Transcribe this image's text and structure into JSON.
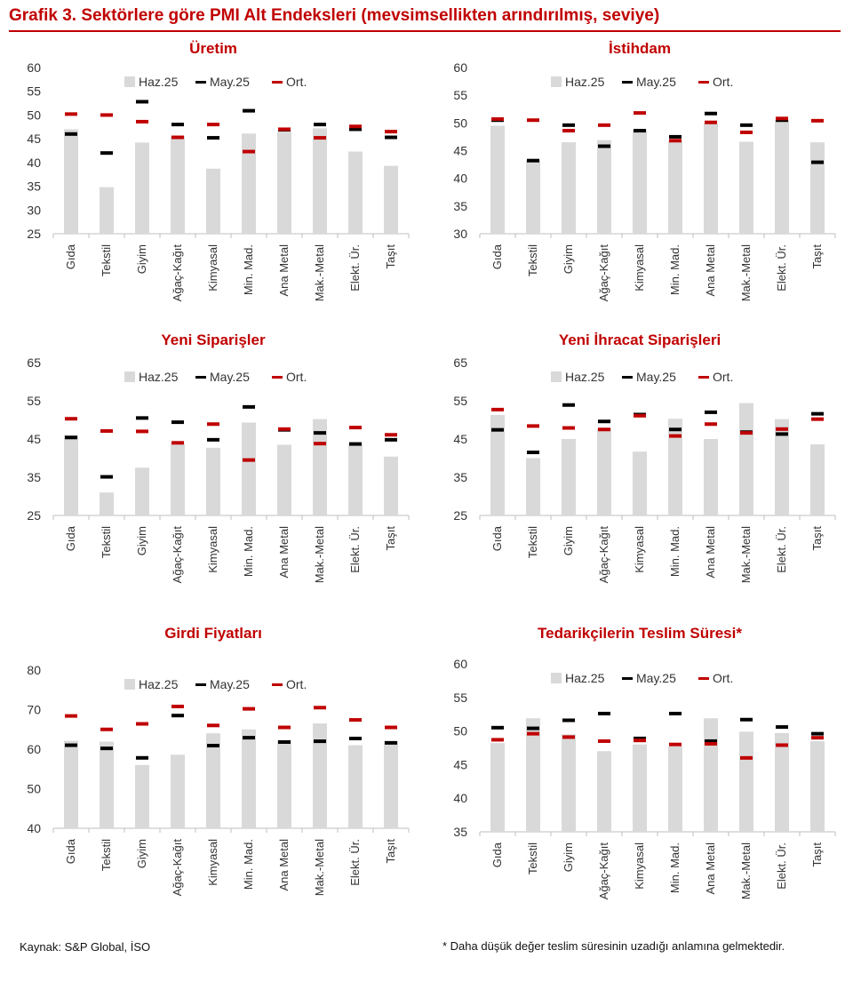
{
  "header": {
    "title": "Grafik 3. Sektörlere göre PMI Alt Endeksleri (mevsimsellikten arındırılmış, seviye)"
  },
  "footer": {
    "source": "Kaynak: S&P Global, İSO",
    "note": "* Daha düşük değer teslim süresinin uzadığı anlamına gelmektedir."
  },
  "legend": {
    "haz": "Haz.25",
    "may": "May.25",
    "ort": "Ort."
  },
  "colors": {
    "haz": "#d9d9d9",
    "may": "#000000",
    "ort": "#c00000",
    "title": "#c00000"
  },
  "categories": [
    "Gıda",
    "Tekstil",
    "Giyim",
    "Ağaç-Kağıt",
    "Kimyasal",
    "Min. Mad.",
    "Ana Metal",
    "Mak.-Metal",
    "Elekt. Ür.",
    "Taşıt"
  ],
  "chart_data": [
    {
      "type": "bar",
      "title": "Üretim",
      "ylim": [
        25,
        60
      ],
      "yticks": [
        25,
        30,
        35,
        40,
        45,
        50,
        55,
        60
      ],
      "series": [
        {
          "name": "Haz.25",
          "values": [
            47.0,
            34.8,
            44.2,
            45.5,
            38.7,
            46.1,
            46.6,
            47.2,
            42.3,
            39.3
          ]
        },
        {
          "name": "May.25",
          "values": [
            46.0,
            42.0,
            52.8,
            48.0,
            45.2,
            50.9,
            46.9,
            48.0,
            47.0,
            45.3
          ]
        },
        {
          "name": "Ort.",
          "values": [
            50.2,
            50.0,
            48.6,
            45.3,
            48.0,
            42.3,
            47.0,
            45.2,
            47.6,
            46.5
          ]
        }
      ],
      "legend_position": "top"
    },
    {
      "type": "bar",
      "title": "İstihdam",
      "ylim": [
        30,
        60
      ],
      "yticks": [
        30,
        35,
        40,
        45,
        50,
        55,
        60
      ],
      "series": [
        {
          "name": "Haz.25",
          "values": [
            49.5,
            43.3,
            46.5,
            46.9,
            48.8,
            46.8,
            49.9,
            46.6,
            50.5,
            46.5
          ]
        },
        {
          "name": "May.25",
          "values": [
            50.5,
            43.2,
            49.6,
            45.8,
            48.6,
            47.5,
            51.7,
            49.6,
            50.5,
            42.9
          ]
        },
        {
          "name": "Ort.",
          "values": [
            50.7,
            50.5,
            48.6,
            49.6,
            51.8,
            46.8,
            50.1,
            48.3,
            50.8,
            50.4
          ]
        }
      ],
      "legend_position": "top"
    },
    {
      "type": "bar",
      "title": "Yeni Siparişler",
      "ylim": [
        25,
        65
      ],
      "yticks": [
        25,
        35,
        45,
        55,
        65
      ],
      "series": [
        {
          "name": "Haz.25",
          "values": [
            46.0,
            31.0,
            37.5,
            43.8,
            42.7,
            49.3,
            43.5,
            50.2,
            43.6,
            40.4
          ]
        },
        {
          "name": "May.25",
          "values": [
            45.4,
            35.1,
            50.5,
            49.4,
            44.8,
            53.4,
            47.4,
            46.6,
            43.7,
            44.8
          ]
        },
        {
          "name": "Ort.",
          "values": [
            50.3,
            47.1,
            47.0,
            44.0,
            48.9,
            39.5,
            47.6,
            43.8,
            48.0,
            46.1
          ]
        }
      ],
      "legend_position": "top"
    },
    {
      "type": "bar",
      "title": "Yeni İhracat Siparişleri",
      "ylim": [
        25,
        65
      ],
      "yticks": [
        25,
        35,
        45,
        55,
        65
      ],
      "series": [
        {
          "name": "Haz.25",
          "values": [
            51.3,
            40.0,
            45.0,
            47.8,
            41.7,
            50.3,
            45.0,
            54.4,
            50.2,
            43.6
          ]
        },
        {
          "name": "May.25",
          "values": [
            47.4,
            41.5,
            53.9,
            49.6,
            51.4,
            47.5,
            52.0,
            46.8,
            46.3,
            51.6
          ]
        },
        {
          "name": "Ort.",
          "values": [
            52.7,
            48.4,
            47.9,
            47.5,
            51.1,
            45.8,
            48.9,
            46.6,
            47.6,
            50.2
          ]
        }
      ],
      "legend_position": "top"
    },
    {
      "type": "bar",
      "title": "Girdi Fiyatları",
      "ylim": [
        40,
        80
      ],
      "yticks": [
        40,
        50,
        60,
        70,
        80
      ],
      "series": [
        {
          "name": "Haz.25",
          "values": [
            62.1,
            61.9,
            56.0,
            58.6,
            64.0,
            65.0,
            62.3,
            66.5,
            61.0,
            62.0
          ]
        },
        {
          "name": "May.25",
          "values": [
            61.0,
            60.2,
            57.8,
            68.5,
            60.9,
            62.9,
            61.8,
            62.0,
            62.7,
            61.6
          ]
        },
        {
          "name": "Ort.",
          "values": [
            68.4,
            65.0,
            66.4,
            70.8,
            66.0,
            70.2,
            65.5,
            70.5,
            67.4,
            65.5
          ]
        }
      ],
      "legend_position": "top"
    },
    {
      "type": "bar",
      "title": "Tedarikçilerin Teslim Süresi*",
      "ylim": [
        35,
        60
      ],
      "yticks": [
        35,
        40,
        45,
        50,
        55,
        60
      ],
      "series": [
        {
          "name": "Haz.25",
          "values": [
            48.2,
            51.9,
            49.5,
            47.0,
            48.0,
            47.7,
            51.9,
            49.9,
            49.7,
            48.5
          ]
        },
        {
          "name": "May.25",
          "values": [
            50.5,
            50.4,
            51.6,
            52.6,
            48.9,
            52.6,
            48.5,
            51.7,
            50.6,
            49.6
          ]
        },
        {
          "name": "Ort.",
          "values": [
            48.7,
            49.6,
            49.1,
            48.5,
            48.6,
            48.0,
            48.1,
            46.0,
            47.9,
            49.0
          ]
        }
      ],
      "legend_position": "top"
    }
  ]
}
